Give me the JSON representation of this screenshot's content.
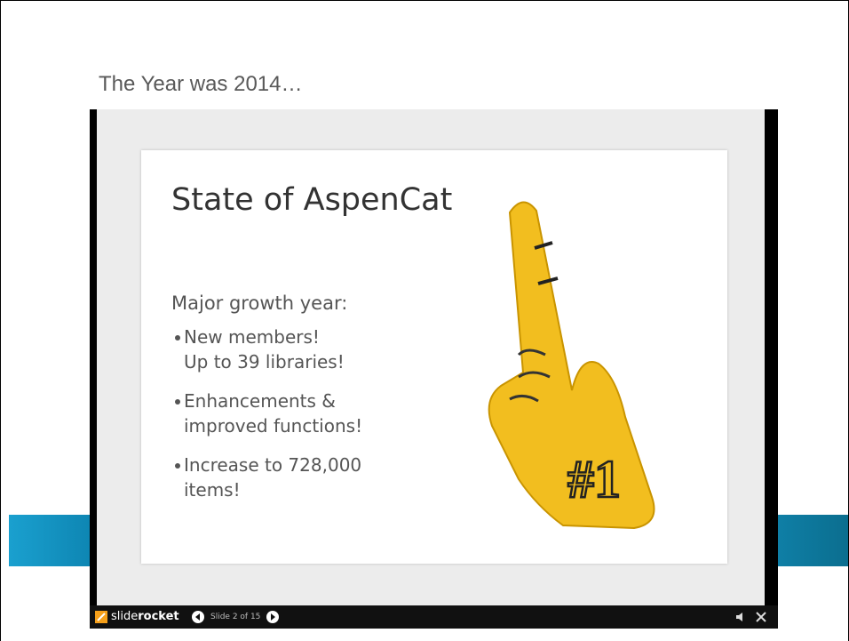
{
  "header": {
    "title": "The Year was 2014…"
  },
  "slide": {
    "title": "State of AspenCat",
    "intro": "Major growth year:",
    "bullets": [
      {
        "lines": [
          "New members!",
          "Up to 39 libraries!"
        ]
      },
      {
        "lines": [
          "Enhancements &",
          "improved functions!"
        ]
      },
      {
        "lines": [
          "Increase to 728,000",
          "items!"
        ]
      }
    ],
    "finger_label": "#1"
  },
  "player": {
    "brand_light": "slide",
    "brand_bold": "rocket",
    "status": "Slide 2 of 15"
  }
}
